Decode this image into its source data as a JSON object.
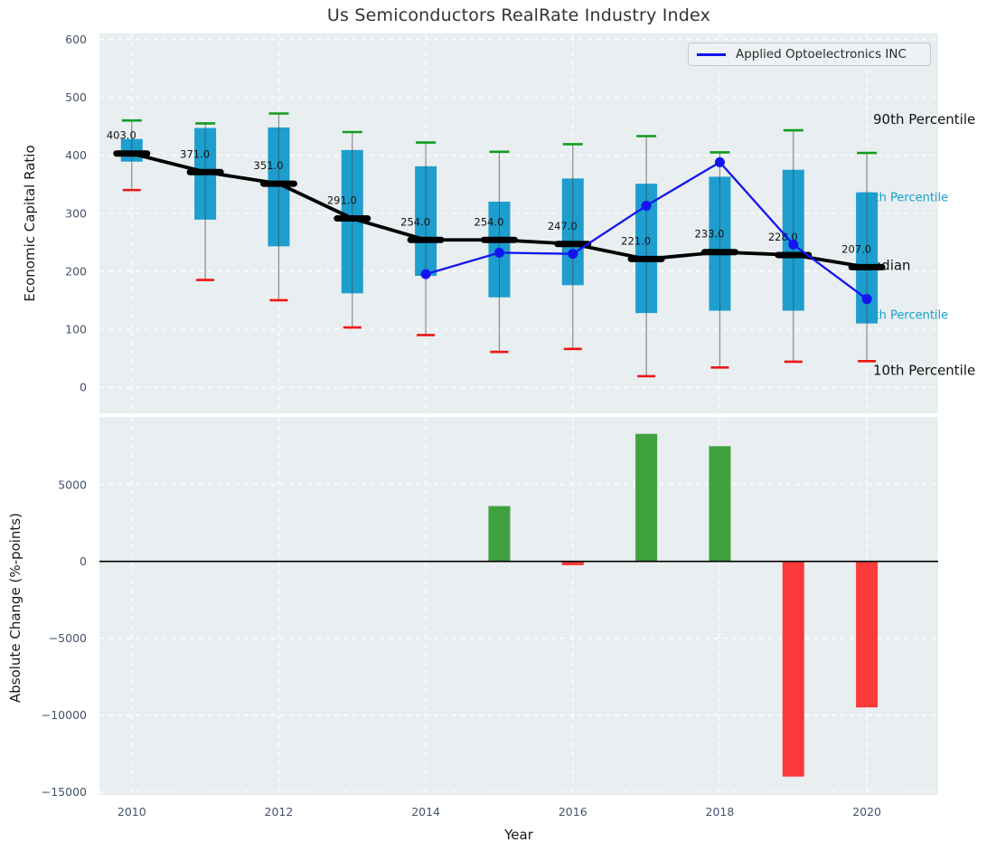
{
  "title": "Us Semiconductors RealRate Industry Index",
  "legend": {
    "label": "Applied Optoelectronics INC"
  },
  "annotations": {
    "p90": "90th Percentile",
    "p75": "75th Percentile",
    "median": "Median",
    "p25": "25th Percentile",
    "p10": "10th Percentile"
  },
  "colors": {
    "plot_bg": "#e9eef0",
    "grid": "#ffffff",
    "box_fill": "#1d9ece",
    "whisker_line": "#8a8a8a",
    "cap_high": "#109c20",
    "cap_low": "#ed1515",
    "median_line": "#000000",
    "company_line": "#1414f0",
    "bar_positive": "#3fa23f",
    "bar_negative": "#fb3b3b",
    "tick_label": "#44546a",
    "annotation_cyan": "#17a0cc",
    "annotation_black": "#111111"
  },
  "chart_data": [
    {
      "type": "box",
      "title": "Us Semiconductors RealRate Industry Index",
      "ylabel": "Economic Capital Ratio",
      "ylim": [
        -45,
        610
      ],
      "xlim": [
        2009.56,
        2020.97
      ],
      "grid": true,
      "legend_position": "upper right",
      "yticks": {
        "values": [
          0,
          100,
          200,
          300,
          400,
          500,
          600
        ],
        "labels": [
          "0",
          "100",
          "200",
          "300",
          "400",
          "500",
          "600"
        ]
      },
      "xticks": {
        "values": [
          2010,
          2012,
          2014,
          2016,
          2018,
          2020
        ],
        "labels": [
          "2010",
          "2012",
          "2014",
          "2016",
          "2018",
          "2020"
        ]
      },
      "years": [
        2010,
        2011,
        2012,
        2013,
        2014,
        2015,
        2016,
        2017,
        2018,
        2019,
        2020
      ],
      "boxes": {
        "p90": [
          460,
          455,
          472,
          440,
          422,
          406,
          419,
          433,
          405,
          443,
          404
        ],
        "p75": [
          428,
          447,
          448,
          409,
          381,
          320,
          360,
          351,
          363,
          375,
          336
        ],
        "median": [
          403,
          371,
          351,
          291,
          254,
          254,
          247,
          221,
          233,
          228,
          207
        ],
        "p25": [
          389,
          289,
          243,
          162,
          192,
          155,
          176,
          128,
          132,
          132,
          110
        ],
        "p10": [
          340,
          185,
          150,
          103,
          90,
          61,
          66,
          19,
          34,
          44,
          45
        ]
      },
      "median_labels": [
        "403.0",
        "371.0",
        "351.0",
        "291.0",
        "254.0",
        "254.0",
        "247.0",
        "221.0",
        "233.0",
        "228.0",
        "207.0"
      ],
      "series": [
        {
          "name": "Applied Optoelectronics INC",
          "x": [
            2014,
            2015,
            2016,
            2017,
            2018,
            2019,
            2020
          ],
          "values": [
            195,
            232,
            230,
            313,
            388,
            246,
            152
          ]
        }
      ]
    },
    {
      "type": "bar",
      "ylabel": "Absolute Change (%-points)",
      "xlabel": "Year",
      "ylim": [
        -15200,
        9400
      ],
      "xlim": [
        2009.56,
        2020.97
      ],
      "grid": true,
      "yticks": {
        "values": [
          5000,
          0,
          -5000,
          -10000,
          -15000
        ],
        "labels": [
          "5000",
          "0",
          "−5000",
          "−10000",
          "−15000"
        ]
      },
      "xticks": {
        "values": [
          2010,
          2012,
          2014,
          2016,
          2018,
          2020
        ],
        "labels": [
          "2010",
          "2012",
          "2014",
          "2016",
          "2018",
          "2020"
        ]
      },
      "categories": [
        2015,
        2016,
        2017,
        2018,
        2019,
        2020
      ],
      "values": [
        3600,
        -250,
        8300,
        7500,
        -14000,
        -9500
      ]
    }
  ]
}
